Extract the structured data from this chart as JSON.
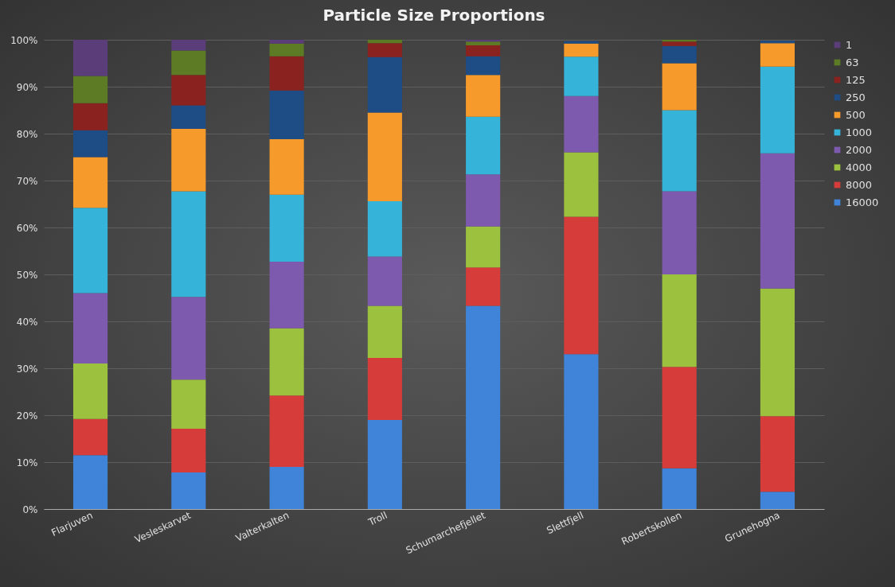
{
  "chart_data": {
    "type": "bar",
    "title": "Particle Size Proportions",
    "stacked": true,
    "categories": [
      "Flarjuven",
      "Vesleskarvet",
      "Valterkalten",
      "Troll",
      "Schumarchefjellet",
      "Slettfjell",
      "Robertskollen",
      "Grunehogna"
    ],
    "series": [
      {
        "name": "16000",
        "color": "#3f84d8",
        "values": [
          11.5,
          7.8,
          9,
          19,
          43.3,
          33,
          8.7,
          3.7
        ]
      },
      {
        "name": "8000",
        "color": "#d63d3a",
        "values": [
          7.7,
          9.3,
          15.2,
          13.2,
          8.2,
          29.3,
          21.6,
          16.1
        ]
      },
      {
        "name": "4000",
        "color": "#9cc13f",
        "values": [
          11.8,
          10.5,
          14.3,
          11.1,
          8.7,
          13.7,
          19.7,
          27.2
        ]
      },
      {
        "name": "2000",
        "color": "#7e5aae",
        "values": [
          15,
          17.6,
          14.2,
          10.5,
          11.1,
          12,
          17.7,
          28.8
        ]
      },
      {
        "name": "1000",
        "color": "#36b3d8",
        "values": [
          18.2,
          22.5,
          14.3,
          11.8,
          12.3,
          8.4,
          17.3,
          18.5
        ]
      },
      {
        "name": "500",
        "color": "#f59a2b",
        "values": [
          10.8,
          13.3,
          11.8,
          18.9,
          8.9,
          2.8,
          10,
          5
        ]
      },
      {
        "name": "250",
        "color": "#1e4c85",
        "values": [
          5.7,
          5,
          10.4,
          11.8,
          4,
          0.5,
          3.7,
          0.5
        ]
      },
      {
        "name": "125",
        "color": "#8a221f",
        "values": [
          5.8,
          6.5,
          7.3,
          3,
          2.3,
          0,
          0.9,
          0
        ]
      },
      {
        "name": "63",
        "color": "#5d7a24",
        "values": [
          5.8,
          5.2,
          2.7,
          0.7,
          0.8,
          0,
          0.4,
          0
        ]
      },
      {
        "name": "1",
        "color": "#5b3d7a",
        "values": [
          7.7,
          2.3,
          0.8,
          0,
          0.4,
          0,
          0,
          0
        ]
      }
    ],
    "ylim": [
      0,
      100
    ],
    "yticks": [
      {
        "value": 0,
        "label": "0%"
      },
      {
        "value": 10,
        "label": "10%"
      },
      {
        "value": 20,
        "label": "20%"
      },
      {
        "value": 30,
        "label": "30%"
      },
      {
        "value": 40,
        "label": "40%"
      },
      {
        "value": 50,
        "label": "50%"
      },
      {
        "value": 60,
        "label": "60%"
      },
      {
        "value": 70,
        "label": "70%"
      },
      {
        "value": 80,
        "label": "80%"
      },
      {
        "value": 90,
        "label": "90%"
      },
      {
        "value": 100,
        "label": "100%"
      }
    ],
    "grid": "y",
    "legend": "right"
  }
}
